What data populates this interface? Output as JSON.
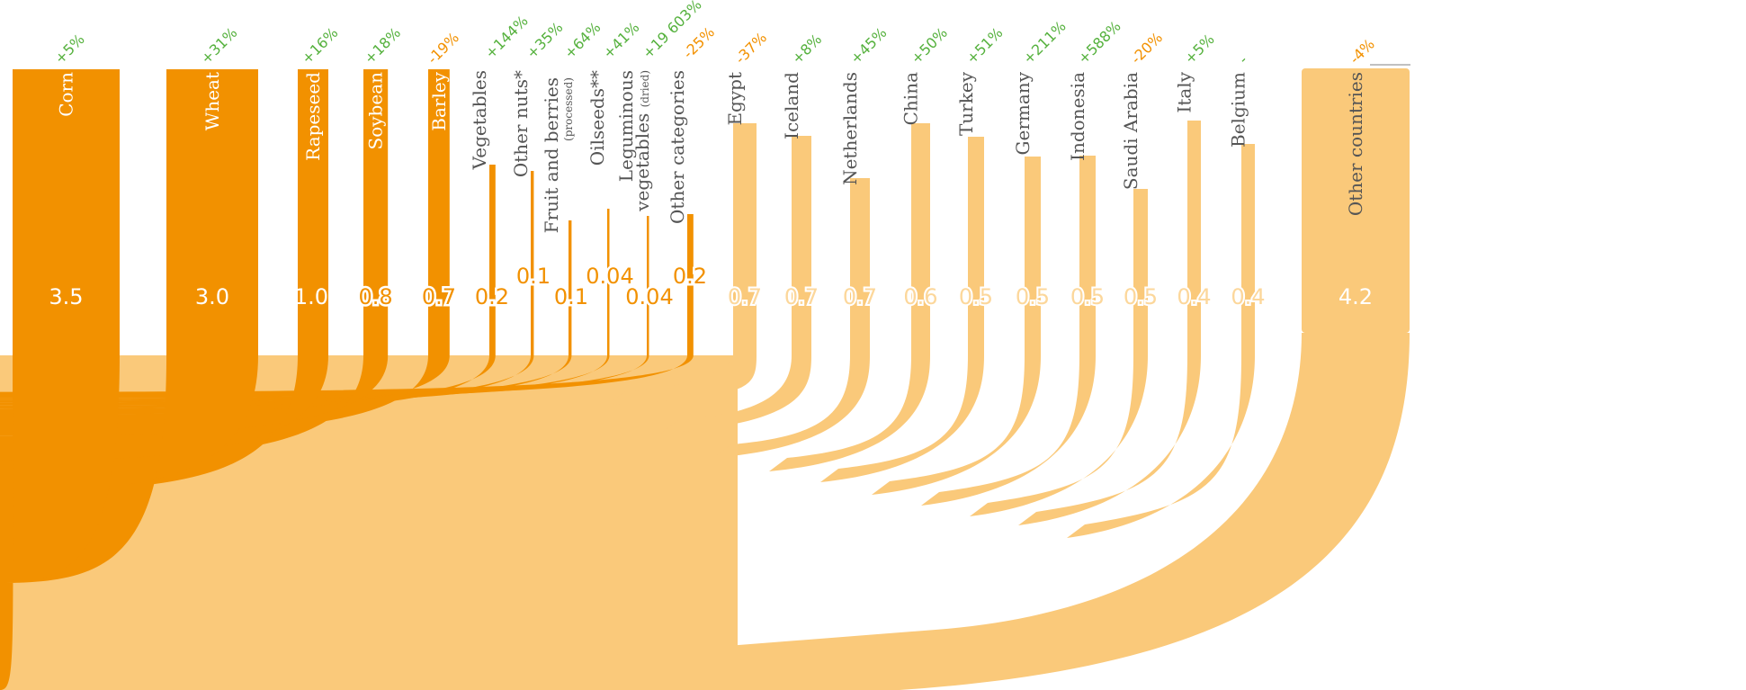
{
  "chart_data": {
    "type": "sankey",
    "colors": {
      "product": "#f29100",
      "product_light": "#f9c97f",
      "country": "#fac97a",
      "value_on_dark": "#ffffff",
      "value_on_light": "#f29100",
      "value_country": "#fcd79b",
      "increase": "#55b13d",
      "decrease": "#f29100",
      "label_dark": "#555555",
      "label_light": "#ffffff",
      "neutral": "#55b13d"
    },
    "products": [
      {
        "name": "Corn",
        "value": 3.5,
        "value_label": "3.5",
        "change": "+5%",
        "direction": "up"
      },
      {
        "name": "Wheat",
        "value": 3.0,
        "value_label": "3.0",
        "change": "+31%",
        "direction": "up"
      },
      {
        "name": "Rapeseed",
        "value": 1.0,
        "value_label": "1.0",
        "change": "+16%",
        "direction": "up"
      },
      {
        "name": "Soybean",
        "value": 0.8,
        "value_label": "0.8",
        "change": "+18%",
        "direction": "up"
      },
      {
        "name": "Barley",
        "value": 0.7,
        "value_label": "0.7",
        "change": "-19%",
        "direction": "down"
      },
      {
        "name": "Vegetables",
        "value": 0.2,
        "value_label": "0.2",
        "change": "+144%",
        "direction": "up"
      },
      {
        "name": "Other nuts*",
        "value": 0.1,
        "value_label": "0.1",
        "change": "+35%",
        "direction": "up"
      },
      {
        "name": "Fruit and berries",
        "sub": "(processed)",
        "value": 0.1,
        "value_label": "0.1",
        "change": "+64%",
        "direction": "up"
      },
      {
        "name": "Oilseeds**",
        "value": 0.04,
        "value_label": "0.04",
        "change": "+41%",
        "direction": "up"
      },
      {
        "name": "Leguminous",
        "name2": "vegetables",
        "sub": "(dried)",
        "value": 0.04,
        "value_label": "0.04",
        "change": "+19 603%",
        "direction": "up"
      },
      {
        "name": "Other categories",
        "value": 0.2,
        "value_label": "0.2",
        "change": "-25%",
        "direction": "down"
      }
    ],
    "countries": [
      {
        "name": "Egypt",
        "value": 0.7,
        "value_label": "0.7",
        "change": "-37%",
        "direction": "down"
      },
      {
        "name": "Iceland",
        "value": 0.7,
        "value_label": "0.7",
        "change": "+8%",
        "direction": "up"
      },
      {
        "name": "Netherlands",
        "value": 0.7,
        "value_label": "0.7",
        "change": "+45%",
        "direction": "up"
      },
      {
        "name": "China",
        "value": 0.6,
        "value_label": "0.6",
        "change": "+50%",
        "direction": "up"
      },
      {
        "name": "Turkey",
        "value": 0.5,
        "value_label": "0.5",
        "change": "+51%",
        "direction": "up"
      },
      {
        "name": "Germany",
        "value": 0.5,
        "value_label": "0.5",
        "change": "+211%",
        "direction": "up"
      },
      {
        "name": "Indonesia",
        "value": 0.5,
        "value_label": "0.5",
        "change": "+588%",
        "direction": "up"
      },
      {
        "name": "Saudi Arabia",
        "value": 0.5,
        "value_label": "0.5",
        "change": "-20%",
        "direction": "down"
      },
      {
        "name": "Italy",
        "value": 0.4,
        "value_label": "0.4",
        "change": "+5%",
        "direction": "up"
      },
      {
        "name": "Belgium",
        "value": 0.4,
        "value_label": "0.4",
        "change": "-",
        "direction": "neutral"
      },
      {
        "name": "Other countries",
        "value": 4.2,
        "value_label": "4.2",
        "change": "-4%",
        "direction": "down"
      }
    ]
  }
}
